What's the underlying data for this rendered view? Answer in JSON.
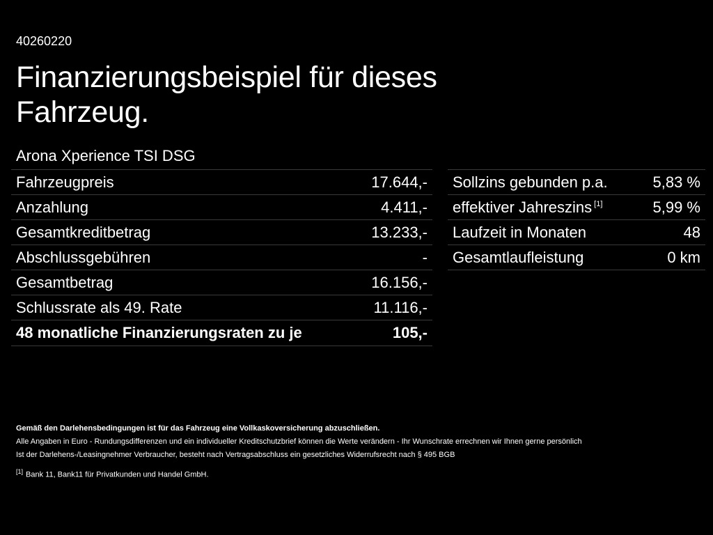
{
  "header": {
    "reference": "40260220",
    "title": "Finanzierungsbeispiel für dieses Fahrzeug.",
    "model": "Arona Xperience TSI DSG"
  },
  "left_table": [
    {
      "label": "Fahrzeugpreis",
      "value": "17.644,-"
    },
    {
      "label": "Anzahlung",
      "value": "4.411,-"
    },
    {
      "label": "Gesamtkreditbetrag",
      "value": "13.233,-"
    },
    {
      "label": "Abschlussgebühren",
      "value": "-"
    },
    {
      "label": "Gesamtbetrag",
      "value": "16.156,-"
    },
    {
      "label": "Schlussrate als 49. Rate",
      "value": "11.116,-"
    },
    {
      "label": "48 monatliche Finanzierungsraten zu je",
      "value": "105,-"
    }
  ],
  "right_table": [
    {
      "label": "Sollzins gebunden p.a.",
      "value": "5,83 %"
    },
    {
      "label": "effektiver Jahreszins",
      "footnote": "[1]",
      "value": "5,99 %"
    },
    {
      "label": "Laufzeit in Monaten",
      "value": "48"
    },
    {
      "label": "Gesamtlaufleistung",
      "value": "0 km"
    }
  ],
  "footer": {
    "insurance_note": "Gemäß den Darlehensbedingungen ist für das Fahrzeug eine Vollkaskoversicherung abzuschließen.",
    "info_line": "Alle Angaben in Euro - Rundungsdifferenzen und ein individueller Kreditschutzbrief können die Werte verändern - Ihr Wunschrate errechnen wir Ihnen gerne persönlich",
    "consumer_line": "Ist der Darlehens-/Leasingnehmer Verbraucher, besteht nach Vertragsabschluss ein gesetzliches Widerrufsrecht nach § 495 BGB",
    "footnote_mark": "[1]",
    "footnote_text": "Bank 11, Bank11 für Privatkunden und Handel GmbH."
  }
}
